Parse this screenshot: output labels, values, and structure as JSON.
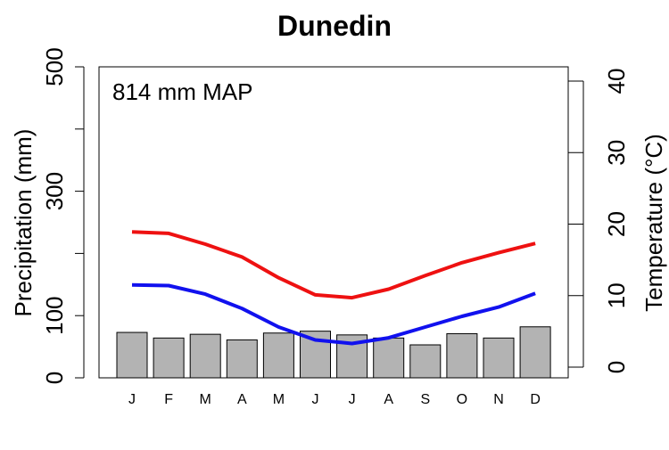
{
  "chart_data": {
    "type": "bar",
    "title": "Dunedin",
    "annotation": "814 mm MAP",
    "ylabel": "Precipitation (mm)",
    "y2label": "Temperature (°C)",
    "categories": [
      "J",
      "F",
      "M",
      "A",
      "M",
      "J",
      "J",
      "A",
      "S",
      "O",
      "N",
      "D"
    ],
    "ylim": [
      0,
      500
    ],
    "yticks": [
      {
        "value": 0,
        "label": "0"
      },
      {
        "value": 100,
        "label": "100"
      },
      {
        "value": 200,
        "label": ""
      },
      {
        "value": 300,
        "label": "300"
      },
      {
        "value": 400,
        "label": ""
      },
      {
        "value": 500,
        "label": "500"
      }
    ],
    "y2lim": [
      -1.5,
      42
    ],
    "y2ticks": [
      {
        "value": 0,
        "label": "0"
      },
      {
        "value": 10,
        "label": "10"
      },
      {
        "value": 20,
        "label": "20"
      },
      {
        "value": 30,
        "label": "30"
      },
      {
        "value": 40,
        "label": "40"
      }
    ],
    "precipitation": [
      73,
      64,
      70,
      61,
      72,
      75,
      69,
      64,
      53,
      71,
      64,
      82
    ],
    "temperature_series": [
      {
        "color": "#ee1111",
        "values": [
          18.9,
          18.7,
          17.2,
          15.4,
          12.5,
          10.1,
          9.7,
          10.9,
          12.8,
          14.6,
          16.0,
          17.3
        ]
      },
      {
        "color": "#1111ee",
        "values": [
          11.5,
          11.4,
          10.2,
          8.2,
          5.6,
          3.8,
          3.3,
          4.1,
          5.6,
          7.1,
          8.4,
          10.3
        ]
      }
    ],
    "bar_color": "#b3b3b3",
    "grid": false
  }
}
